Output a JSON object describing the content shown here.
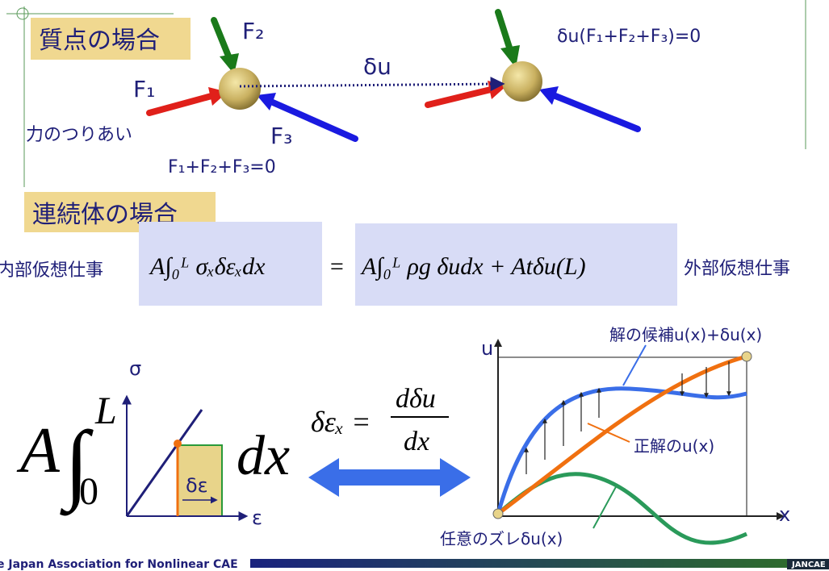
{
  "particle": {
    "heading": "質点の場合",
    "f1": "F₁",
    "f2": "F₂",
    "f3": "F₃",
    "du": "δu",
    "balance": "力のつりあい",
    "sum": "F₁+F₂+F₃=0",
    "virtual": "δu(F₁+F₂+F₃)=0"
  },
  "continuum": {
    "heading": "連続体の場合",
    "internal": "内部仮想仕事",
    "external": "外部仮想仕事",
    "equation": {
      "lhs": "A∫₀ᴸ σₓδεₓdx",
      "equals": "=",
      "rhs": "A∫₀ᴸ ρg δudx + Atδu(L)"
    }
  },
  "integral": {
    "coef": "A",
    "sign": "∫",
    "upper": "L",
    "lower": "0",
    "dx": "dx",
    "sigma": "σ",
    "epsilon": "ε",
    "delta_eps": "δε"
  },
  "strain": {
    "lhs": "δεₓ =",
    "numerator": "dδu",
    "denominator": "dx"
  },
  "graph": {
    "u_axis": "u",
    "x_axis": "x",
    "candidate": "解の候補u(x)+δu(x)",
    "exact": "正解のu(x)",
    "variation": "任意のズレδu(x)"
  },
  "footer": {
    "org": "e Japan Association for Nonlinear CAE",
    "logo": "JANCAE"
  }
}
